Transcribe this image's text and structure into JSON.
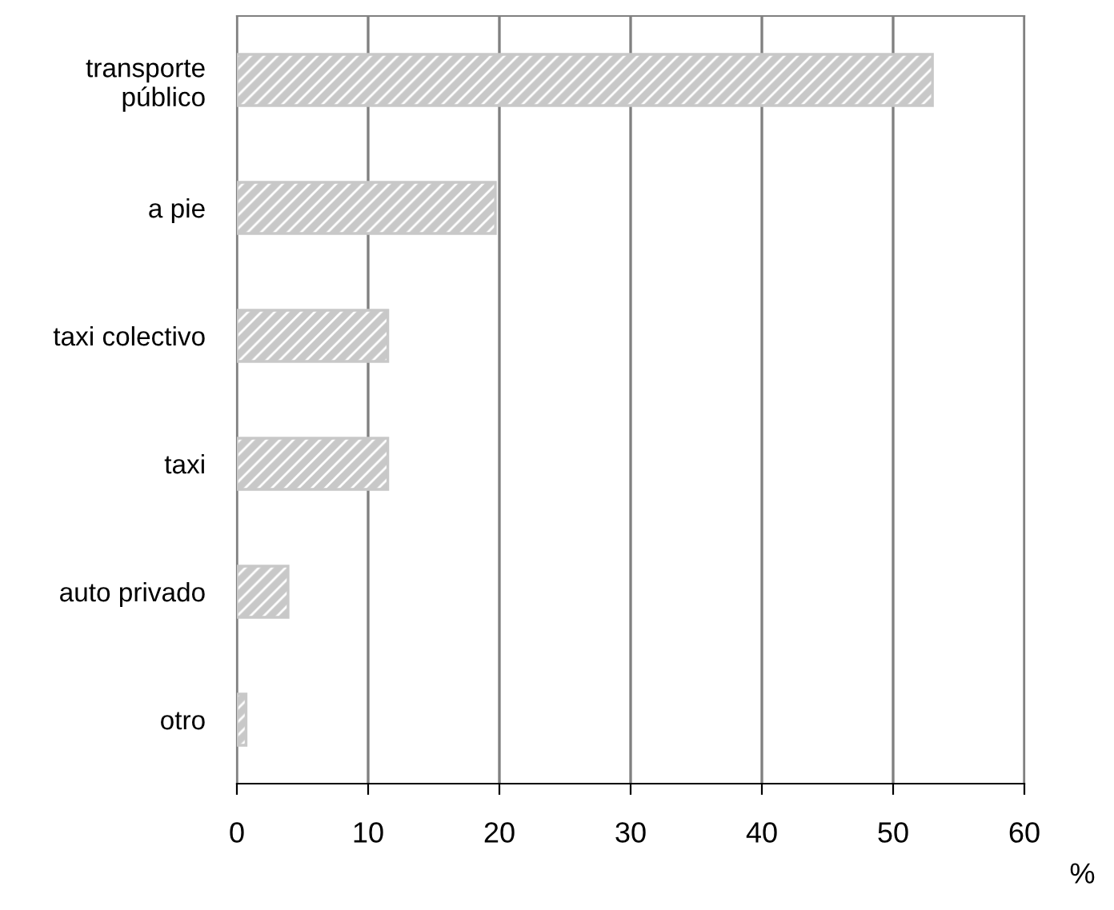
{
  "chart_data": {
    "type": "bar",
    "orientation": "horizontal",
    "categories": [
      "transporte\npúblico",
      "a pie",
      "taxi colectivo",
      "taxi",
      "auto privado",
      "otro"
    ],
    "values": [
      53.0,
      19.7,
      11.5,
      11.5,
      3.9,
      0.7
    ],
    "color": "#c8c8c8",
    "xlabel": "%",
    "xlim": [
      0,
      60
    ],
    "xticks": [
      0,
      10,
      20,
      30,
      40,
      50,
      60
    ],
    "grid": "x",
    "legend": false
  }
}
